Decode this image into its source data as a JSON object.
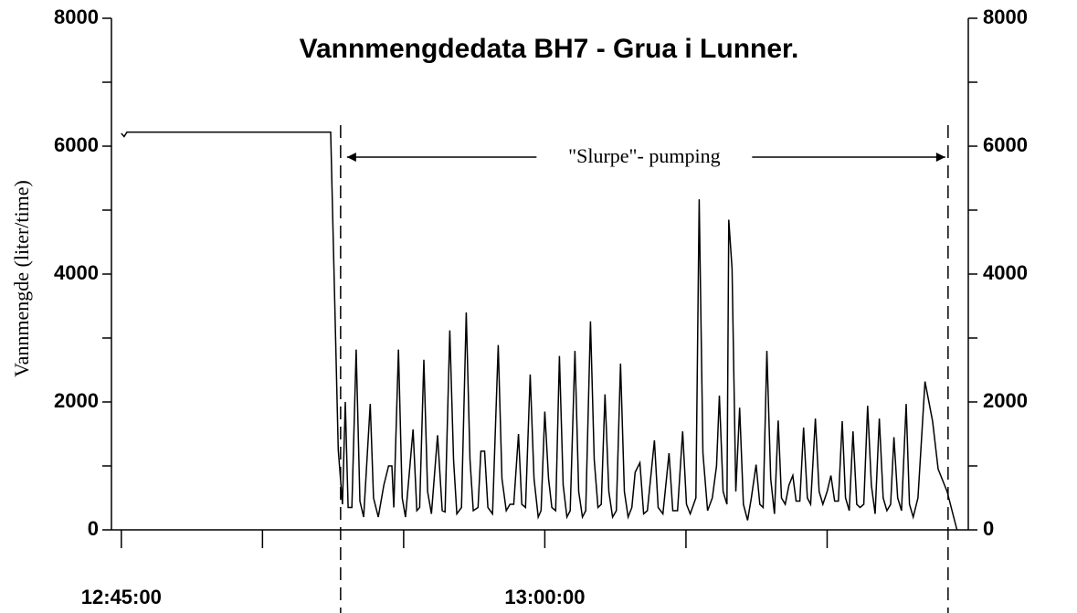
{
  "chart_data": {
    "type": "line",
    "title": "Vannmengdedata BH7 - Grua i Lunner.",
    "y_label": "Vannmengde (liter/time)",
    "annotation": "\"Slurpe\"- pumping",
    "vlines": [
      "12:52:46",
      "13:14:17"
    ],
    "color": "#000000",
    "xlim": [
      "12:44:39",
      "13:15:00"
    ],
    "xticks": [
      "12:45:00",
      "13:00:00"
    ],
    "x_minor_ticks": [
      "12:50:00",
      "12:55:00",
      "13:05:00",
      "13:10:00"
    ],
    "ylim": [
      0,
      8000
    ],
    "yticks": [
      0,
      2000,
      4000,
      6000,
      8000
    ],
    "y_minor_ticks": [
      1000,
      3000,
      5000,
      7000
    ],
    "y2lim": [
      0,
      8000
    ],
    "y2ticks": [
      0,
      2000,
      4000,
      6000,
      8000
    ],
    "x": [
      "12:45:00",
      "12:45:06",
      "12:45:12",
      "12:52:25",
      "12:52:41",
      "12:52:50",
      "12:52:56",
      "12:53:02",
      "12:53:10",
      "12:53:19",
      "12:53:27",
      "12:53:35",
      "12:53:49",
      "12:53:56",
      "12:54:06",
      "12:54:18",
      "12:54:28",
      "12:54:35",
      "12:54:39",
      "12:54:49",
      "12:54:57",
      "12:55:04",
      "12:55:20",
      "12:55:28",
      "12:55:34",
      "12:55:43",
      "12:55:51",
      "12:55:59",
      "12:56:12",
      "12:56:22",
      "12:56:28",
      "12:56:38",
      "12:56:46",
      "12:56:53",
      "12:57:03",
      "12:57:13",
      "12:57:21",
      "12:57:28",
      "12:57:38",
      "12:57:44",
      "12:57:52",
      "12:57:59",
      "12:58:09",
      "12:58:21",
      "12:58:29",
      "12:58:38",
      "12:58:46",
      "12:58:54",
      "12:59:04",
      "12:59:11",
      "12:59:19",
      "12:59:29",
      "12:59:37",
      "12:59:46",
      "12:59:52",
      "13:00:00",
      "13:00:08",
      "13:00:15",
      "13:00:23",
      "13:00:31",
      "13:00:39",
      "13:00:47",
      "13:00:54",
      "13:01:04",
      "13:01:12",
      "13:01:20",
      "13:01:27",
      "13:01:37",
      "13:01:45",
      "13:01:53",
      "13:02:00",
      "13:02:08",
      "13:02:16",
      "13:02:24",
      "13:02:32",
      "13:02:41",
      "13:02:49",
      "13:02:57",
      "13:03:05",
      "13:03:12",
      "13:03:22",
      "13:03:30",
      "13:03:38",
      "13:03:53",
      "13:04:01",
      "13:04:11",
      "13:04:24",
      "13:04:32",
      "13:04:42",
      "13:04:53",
      "13:05:01",
      "13:05:09",
      "13:05:21",
      "13:05:28",
      "13:05:36",
      "13:05:46",
      "13:05:56",
      "13:06:05",
      "13:06:11",
      "13:06:19",
      "13:06:27",
      "13:06:31",
      "13:06:38",
      "13:06:46",
      "13:06:54",
      "13:07:02",
      "13:07:11",
      "13:07:19",
      "13:07:29",
      "13:07:37",
      "13:07:44",
      "13:07:52",
      "13:08:00",
      "13:08:08",
      "13:08:16",
      "13:08:23",
      "13:08:31",
      "13:08:39",
      "13:08:47",
      "13:08:54",
      "13:09:02",
      "13:09:10",
      "13:09:18",
      "13:09:25",
      "13:09:35",
      "13:09:43",
      "13:09:51",
      "13:10:00",
      "13:10:08",
      "13:10:16",
      "13:10:24",
      "13:10:32",
      "13:10:39",
      "13:10:47",
      "13:10:55",
      "13:11:03",
      "13:11:10",
      "13:11:18",
      "13:11:26",
      "13:11:34",
      "13:11:42",
      "13:11:51",
      "13:11:59",
      "13:12:07",
      "13:12:15",
      "13:12:22",
      "13:12:30",
      "13:12:38",
      "13:12:48",
      "13:12:55",
      "13:13:03",
      "13:13:13",
      "13:13:28",
      "13:13:44",
      "13:13:56",
      "13:14:15",
      "13:14:36"
    ],
    "values": [
      6200,
      6150,
      6220,
      6220,
      1250,
      400,
      2000,
      350,
      350,
      2820,
      450,
      200,
      1970,
      500,
      200,
      700,
      1000,
      1000,
      350,
      2820,
      500,
      200,
      1570,
      300,
      350,
      2660,
      600,
      250,
      1480,
      300,
      280,
      3120,
      1100,
      250,
      350,
      3400,
      1100,
      300,
      350,
      1230,
      1230,
      350,
      250,
      2890,
      800,
      300,
      400,
      400,
      1500,
      400,
      350,
      2430,
      800,
      200,
      300,
      1850,
      800,
      350,
      300,
      2720,
      700,
      200,
      300,
      2800,
      600,
      200,
      300,
      3260,
      1100,
      350,
      400,
      2120,
      600,
      200,
      300,
      2600,
      600,
      200,
      350,
      900,
      1050,
      250,
      300,
      1400,
      350,
      250,
      1200,
      300,
      300,
      1540,
      400,
      250,
      500,
      5170,
      1200,
      300,
      500,
      1000,
      2100,
      600,
      400,
      4850,
      4080,
      600,
      1910,
      400,
      150,
      500,
      1020,
      400,
      350,
      2800,
      800,
      250,
      1710,
      500,
      400,
      700,
      850,
      450,
      450,
      1600,
      500,
      400,
      1740,
      600,
      400,
      600,
      850,
      450,
      450,
      1700,
      500,
      300,
      1540,
      400,
      350,
      400,
      1940,
      700,
      250,
      1740,
      500,
      300,
      400,
      1450,
      500,
      300,
      1970,
      400,
      200,
      500,
      2320,
      1700,
      950,
      600,
      0
    ]
  }
}
